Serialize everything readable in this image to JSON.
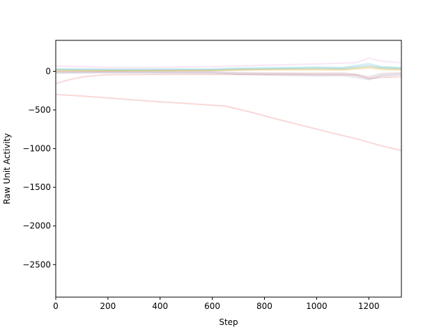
{
  "chart_data": {
    "type": "line",
    "title": "",
    "xlabel": "Step",
    "ylabel": "Raw Unit Activity",
    "xlim": [
      0,
      1325
    ],
    "ylim": [
      -2920,
      400
    ],
    "x_ticks": [
      0,
      200,
      400,
      600,
      800,
      1000,
      1200
    ],
    "y_ticks": [
      0,
      -500,
      -1000,
      -1500,
      -2000,
      -2500
    ],
    "grid": false,
    "legend": "none",
    "series_opacity": 0.18,
    "series": [
      {
        "color": "#d62728",
        "x": [
          0,
          100,
          200,
          300,
          400,
          500,
          650,
          750,
          850,
          950,
          1050,
          1150,
          1250,
          1325
        ],
        "y": [
          -300,
          -320,
          -345,
          -370,
          -395,
          -415,
          -450,
          -530,
          -620,
          -705,
          -790,
          -870,
          -965,
          -1025
        ]
      },
      {
        "color": "#d62728",
        "x": [
          0,
          50,
          100,
          150,
          200,
          400,
          600,
          800,
          1000,
          1150,
          1200,
          1250,
          1325
        ],
        "y": [
          -160,
          -110,
          -75,
          -55,
          -45,
          -40,
          -40,
          -40,
          -40,
          -45,
          -95,
          -80,
          -70
        ]
      },
      {
        "color": "#e377c2",
        "x": [
          0,
          100,
          200,
          400,
          600,
          800,
          1000,
          1150,
          1200,
          1250,
          1325
        ],
        "y": [
          70,
          60,
          50,
          50,
          60,
          80,
          95,
          110,
          170,
          130,
          110
        ]
      },
      {
        "color": "#1f77b4",
        "x": [
          0,
          200,
          400,
          600,
          700,
          800,
          1000,
          1100,
          1150,
          1200,
          1250,
          1325
        ],
        "y": [
          25,
          20,
          20,
          22,
          30,
          35,
          45,
          40,
          60,
          80,
          50,
          40
        ]
      },
      {
        "color": "#2ca02c",
        "x": [
          0,
          200,
          400,
          600,
          700,
          800,
          1000,
          1100,
          1150,
          1200,
          1250,
          1325
        ],
        "y": [
          15,
          10,
          12,
          14,
          25,
          30,
          35,
          30,
          45,
          60,
          40,
          30
        ]
      },
      {
        "color": "#ff7f0e",
        "x": [
          0,
          200,
          400,
          600,
          700,
          800,
          1000,
          1100,
          1150,
          1200,
          1250,
          1325
        ],
        "y": [
          5,
          4,
          6,
          8,
          14,
          18,
          20,
          18,
          30,
          40,
          25,
          18
        ]
      },
      {
        "color": "#8c564b",
        "x": [
          0,
          200,
          400,
          600,
          700,
          800,
          1000,
          1100,
          1150,
          1200,
          1250,
          1325
        ],
        "y": [
          -5,
          -5,
          -4,
          -6,
          -15,
          -20,
          -25,
          -20,
          -40,
          -70,
          -30,
          -20
        ]
      },
      {
        "color": "#9467bd",
        "x": [
          0,
          200,
          400,
          600,
          700,
          800,
          1000,
          1100,
          1150,
          1200,
          1250,
          1325
        ],
        "y": [
          -15,
          -12,
          -14,
          -16,
          -30,
          -35,
          -45,
          -40,
          -60,
          -90,
          -50,
          -35
        ]
      },
      {
        "color": "#7f7f7f",
        "x": [
          0,
          200,
          400,
          600,
          700,
          800,
          1000,
          1100,
          1150,
          1200,
          1250,
          1325
        ],
        "y": [
          -25,
          -20,
          -22,
          -24,
          -40,
          -50,
          -60,
          -55,
          -80,
          -110,
          -60,
          -45
        ]
      },
      {
        "color": "#17becf",
        "x": [
          0,
          200,
          400,
          600,
          700,
          800,
          1000,
          1100,
          1150,
          1200,
          1250,
          1325
        ],
        "y": [
          35,
          28,
          30,
          32,
          45,
          50,
          55,
          50,
          75,
          100,
          60,
          50
        ]
      },
      {
        "color": "#bcbd22",
        "x": [
          0,
          200,
          400,
          600,
          700,
          800,
          1000,
          1100,
          1150,
          1200,
          1250,
          1325
        ],
        "y": [
          10,
          8,
          9,
          10,
          18,
          22,
          25,
          20,
          35,
          55,
          30,
          22
        ]
      }
    ]
  }
}
